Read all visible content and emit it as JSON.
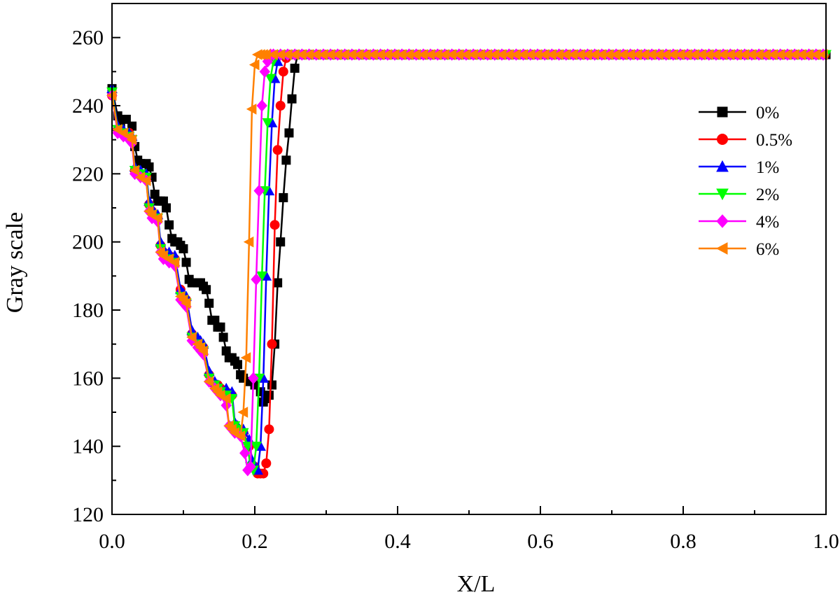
{
  "chart_data": {
    "type": "line",
    "xlabel": "X/L",
    "ylabel": "Gray scale",
    "xlim": [
      0.0,
      1.0
    ],
    "ylim": [
      120,
      270
    ],
    "x_ticks": [
      "0.0",
      "0.2",
      "0.4",
      "0.6",
      "0.8",
      "1.0"
    ],
    "y_ticks": [
      "120",
      "140",
      "160",
      "180",
      "200",
      "220",
      "240",
      "260"
    ],
    "grid": false,
    "legend_position": "top-right",
    "series": [
      {
        "name": "0%",
        "color": "#000000",
        "marker": "square",
        "x": [
          0.0,
          0.008,
          0.012,
          0.02,
          0.028,
          0.032,
          0.036,
          0.04,
          0.048,
          0.052,
          0.056,
          0.06,
          0.064,
          0.068,
          0.072,
          0.076,
          0.08,
          0.084,
          0.088,
          0.092,
          0.096,
          0.1,
          0.104,
          0.108,
          0.112,
          0.12,
          0.124,
          0.128,
          0.132,
          0.136,
          0.14,
          0.144,
          0.148,
          0.152,
          0.156,
          0.16,
          0.164,
          0.168,
          0.172,
          0.176,
          0.18,
          0.184,
          0.192,
          0.2,
          0.208,
          0.212,
          0.216,
          0.22,
          0.224,
          0.228,
          0.232,
          0.236,
          0.24,
          0.244,
          0.248,
          0.252,
          0.256,
          0.26,
          0.3,
          0.4,
          0.5,
          0.6,
          0.7,
          0.8,
          0.9,
          1.0
        ],
        "y": [
          245,
          237,
          235,
          236,
          234,
          228,
          224,
          223,
          223,
          222,
          219,
          214,
          212,
          212,
          212,
          210,
          205,
          201,
          200,
          200,
          199,
          198,
          194,
          189,
          188,
          188,
          188,
          187,
          186,
          182,
          177,
          177,
          175,
          175,
          172,
          168,
          166,
          166,
          165,
          164,
          161,
          160,
          159,
          158,
          156,
          153,
          154,
          155,
          158,
          170,
          188,
          200,
          213,
          224,
          232,
          242,
          251,
          255,
          255,
          255,
          255,
          255,
          255,
          255,
          255,
          255
        ]
      },
      {
        "name": "0.5%",
        "color": "#ff0000",
        "marker": "circle",
        "x": [
          0.0,
          0.008,
          0.016,
          0.024,
          0.028,
          0.032,
          0.04,
          0.048,
          0.052,
          0.056,
          0.064,
          0.068,
          0.072,
          0.08,
          0.088,
          0.096,
          0.1,
          0.104,
          0.112,
          0.12,
          0.124,
          0.128,
          0.136,
          0.144,
          0.148,
          0.152,
          0.16,
          0.168,
          0.172,
          0.176,
          0.184,
          0.192,
          0.2,
          0.204,
          0.208,
          0.212,
          0.216,
          0.22,
          0.224,
          0.228,
          0.232,
          0.236,
          0.24,
          0.244,
          0.248,
          0.3,
          0.4,
          0.5,
          0.6,
          0.7,
          0.8,
          0.9,
          1.0
        ],
        "y": [
          243,
          233,
          232,
          232,
          230,
          221,
          220,
          219,
          211,
          209,
          207,
          199,
          197,
          196,
          195,
          186,
          184,
          183,
          173,
          171,
          170,
          169,
          161,
          158,
          158,
          157,
          156,
          155,
          146,
          145,
          144,
          140,
          134,
          132,
          132,
          132,
          135,
          145,
          170,
          205,
          227,
          240,
          250,
          254,
          255,
          255,
          255,
          255,
          255,
          255,
          255,
          255,
          255
        ]
      },
      {
        "name": "1%",
        "color": "#0000ff",
        "marker": "triangle-up",
        "x": [
          0.0,
          0.008,
          0.016,
          0.024,
          0.028,
          0.032,
          0.04,
          0.048,
          0.052,
          0.056,
          0.064,
          0.068,
          0.072,
          0.08,
          0.088,
          0.096,
          0.1,
          0.104,
          0.112,
          0.12,
          0.124,
          0.128,
          0.136,
          0.144,
          0.148,
          0.152,
          0.16,
          0.168,
          0.172,
          0.176,
          0.184,
          0.192,
          0.196,
          0.2,
          0.204,
          0.208,
          0.212,
          0.216,
          0.22,
          0.224,
          0.228,
          0.232,
          0.236,
          0.3,
          0.4,
          0.5,
          0.6,
          0.7,
          0.8,
          0.9,
          1.0
        ],
        "y": [
          245,
          234,
          233,
          232,
          231,
          222,
          221,
          220,
          212,
          210,
          208,
          200,
          198,
          197,
          196,
          186,
          185,
          184,
          174,
          172,
          171,
          170,
          162,
          159,
          158,
          157,
          157,
          156,
          147,
          146,
          145,
          142,
          136,
          134,
          133,
          140,
          160,
          190,
          215,
          235,
          248,
          253,
          255,
          255,
          255,
          255,
          255,
          255,
          255,
          255,
          255
        ]
      },
      {
        "name": "2%",
        "color": "#00ff00",
        "marker": "triangle-down",
        "x": [
          0.0,
          0.008,
          0.016,
          0.024,
          0.028,
          0.032,
          0.04,
          0.048,
          0.052,
          0.056,
          0.064,
          0.068,
          0.072,
          0.08,
          0.088,
          0.096,
          0.1,
          0.104,
          0.112,
          0.12,
          0.124,
          0.128,
          0.136,
          0.144,
          0.148,
          0.152,
          0.16,
          0.168,
          0.172,
          0.176,
          0.184,
          0.19,
          0.194,
          0.198,
          0.202,
          0.206,
          0.21,
          0.214,
          0.218,
          0.222,
          0.226,
          0.23,
          0.3,
          0.4,
          0.5,
          0.6,
          0.7,
          0.8,
          0.9,
          1.0
        ],
        "y": [
          244,
          233,
          232,
          231,
          230,
          221,
          220,
          219,
          210,
          208,
          207,
          198,
          196,
          195,
          194,
          184,
          183,
          182,
          172,
          170,
          169,
          168,
          160,
          158,
          157,
          156,
          155,
          154,
          146,
          145,
          144,
          140,
          134,
          133,
          140,
          160,
          190,
          215,
          235,
          248,
          253,
          255,
          255,
          255,
          255,
          255,
          255,
          255,
          255,
          255
        ]
      },
      {
        "name": "4%",
        "color": "#ff00ff",
        "marker": "diamond",
        "x": [
          0.0,
          0.008,
          0.016,
          0.024,
          0.028,
          0.032,
          0.04,
          0.048,
          0.052,
          0.056,
          0.064,
          0.068,
          0.072,
          0.08,
          0.088,
          0.096,
          0.1,
          0.104,
          0.112,
          0.12,
          0.124,
          0.128,
          0.136,
          0.144,
          0.148,
          0.152,
          0.16,
          0.164,
          0.168,
          0.172,
          0.18,
          0.186,
          0.19,
          0.194,
          0.198,
          0.202,
          0.206,
          0.21,
          0.214,
          0.218,
          0.222,
          0.226,
          0.3,
          0.4,
          0.5,
          0.6,
          0.7,
          0.8,
          0.9,
          1.0
        ],
        "y": [
          243,
          232,
          231,
          230,
          229,
          220,
          219,
          218,
          209,
          207,
          206,
          197,
          195,
          194,
          193,
          183,
          182,
          181,
          171,
          169,
          168,
          167,
          159,
          157,
          156,
          155,
          152,
          146,
          145,
          144,
          143,
          138,
          133,
          134,
          160,
          189,
          215,
          240,
          250,
          253,
          255,
          255,
          255,
          255,
          255,
          255,
          255,
          255,
          255,
          255
        ]
      },
      {
        "name": "6%",
        "color": "#ff8000",
        "marker": "triangle-left",
        "x": [
          0.0,
          0.008,
          0.016,
          0.024,
          0.028,
          0.032,
          0.04,
          0.048,
          0.052,
          0.056,
          0.064,
          0.068,
          0.072,
          0.08,
          0.088,
          0.096,
          0.1,
          0.104,
          0.112,
          0.12,
          0.124,
          0.128,
          0.136,
          0.144,
          0.148,
          0.152,
          0.16,
          0.164,
          0.168,
          0.172,
          0.18,
          0.184,
          0.188,
          0.192,
          0.196,
          0.2,
          0.204,
          0.208,
          0.212,
          0.216,
          0.3,
          0.4,
          0.5,
          0.6,
          0.7,
          0.8,
          0.9,
          1.0
        ],
        "y": [
          243,
          233,
          232,
          231,
          230,
          221,
          219,
          218,
          209,
          208,
          207,
          197,
          196,
          195,
          194,
          184,
          183,
          182,
          172,
          170,
          169,
          168,
          159,
          157,
          156,
          155,
          154,
          146,
          145,
          144,
          143,
          150,
          166,
          200,
          239,
          252,
          255,
          255,
          255,
          255,
          255,
          255,
          255,
          255,
          255,
          255,
          255,
          255
        ]
      }
    ]
  }
}
